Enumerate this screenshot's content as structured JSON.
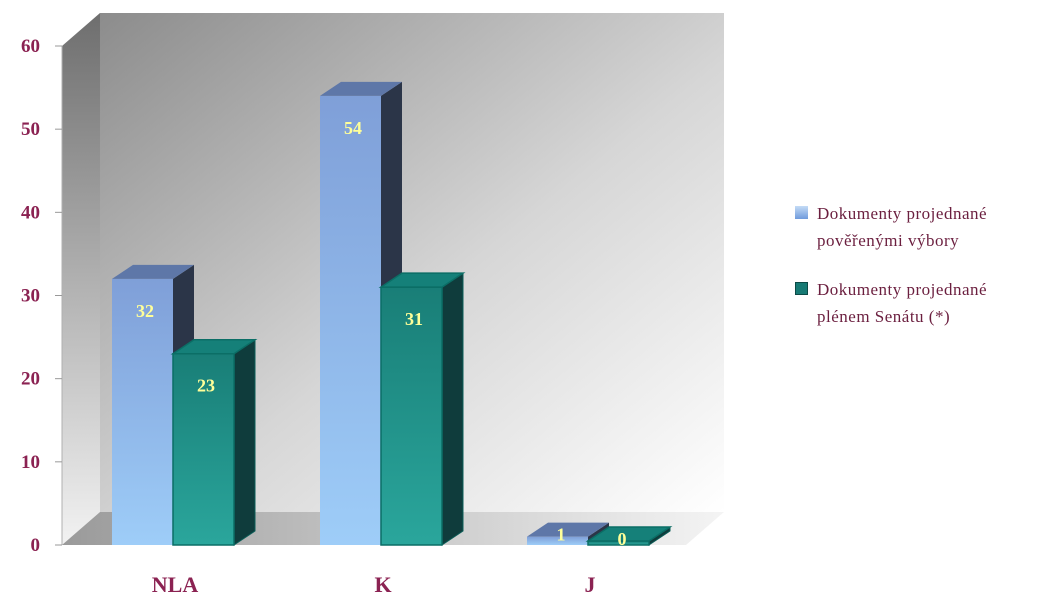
{
  "chart_data": {
    "type": "bar",
    "categories": [
      "NLA",
      "K",
      "J"
    ],
    "series": [
      {
        "name": "Dokumenty projednané pověřenými výbory",
        "values": [
          32,
          54,
          1
        ]
      },
      {
        "name": "Dokumenty projednané plénem Senátu (*)",
        "values": [
          23,
          31,
          0
        ]
      }
    ],
    "yticks": [
      "0",
      "10",
      "20",
      "30",
      "40",
      "50",
      "60"
    ],
    "ylim": [
      0,
      60
    ],
    "grid": false,
    "legend_position": "right",
    "colors": {
      "series1_top": "#7f9fd8",
      "series1_bottom": "#9ecdf8",
      "series1_side": "#2b3548",
      "series2_face": "#1f8f86",
      "series2_side": "#0f3c3c",
      "label": "#ffff99",
      "text": "#8b2252"
    }
  },
  "legend": {
    "items": [
      {
        "line1": "Dokumenty projednané",
        "line2": "pověřenými výbory",
        "color": "#8db4e8"
      },
      {
        "line1": "Dokumenty projednané",
        "line2": "plénem Senátu (*)",
        "color": "#177a74"
      }
    ]
  }
}
